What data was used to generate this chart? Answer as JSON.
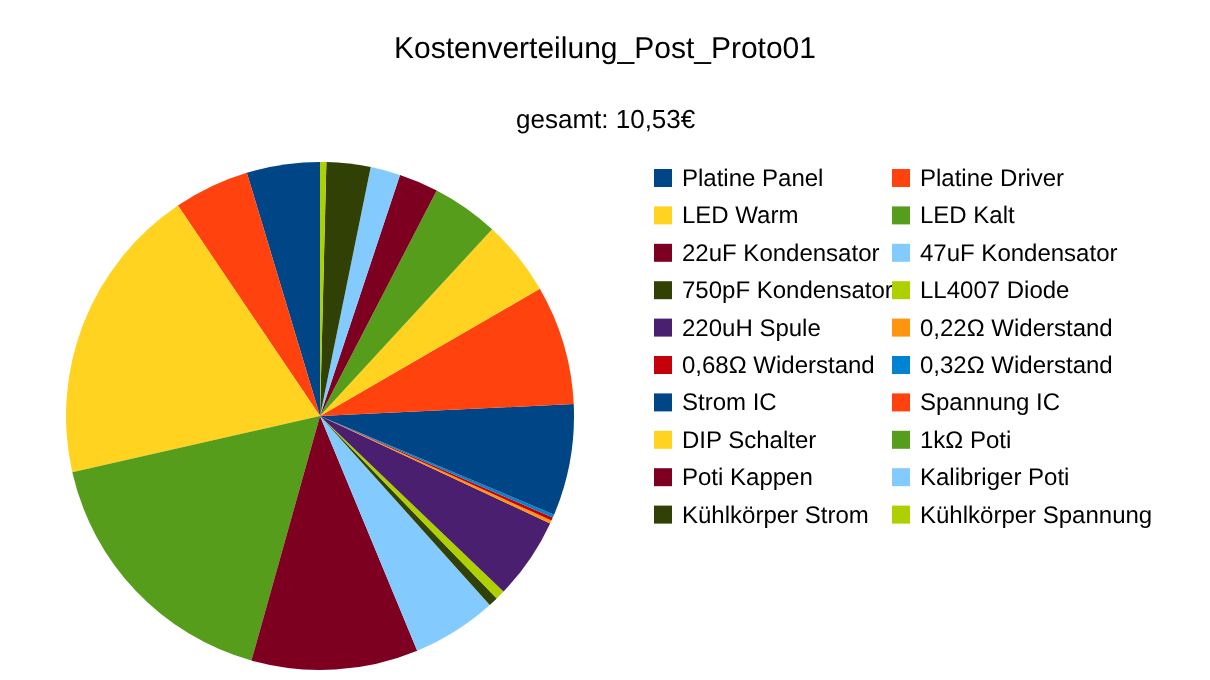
{
  "chart_data": {
    "type": "pie",
    "title": "Kostenverteilung_Post_Proto01",
    "subtitle": "gesamt: 10,53€",
    "categories": [
      "Platine Panel",
      "Platine Driver",
      "LED Warm",
      "LED Kalt",
      "22uF Kondensator",
      "47uF Kondensator",
      "750pF Kondensator",
      "LL4007 Diode",
      "220uH Spule",
      "0,22Ω Widerstand",
      "0,68Ω Widerstand",
      "0,32Ω Widerstand",
      "Strom IC",
      "Spannung IC",
      "DIP Schalter",
      "1kΩ Poti",
      "Poti Kappen",
      "Kalibriger Poti",
      "Kühlkörper Strom",
      "Kühlkörper Spannung"
    ],
    "values": [
      4.65,
      4.8,
      19.1,
      17.1,
      10.6,
      5.4,
      0.6,
      0.6,
      5.2,
      0.2,
      0.2,
      0.2,
      7.1,
      7.6,
      4.8,
      4.25,
      2.5,
      1.9,
      2.8,
      0.4
    ],
    "colors": [
      "#004586",
      "#ff420e",
      "#ffd320",
      "#579d1c",
      "#7e0021",
      "#83caff",
      "#314004",
      "#aecf00",
      "#4b1f6f",
      "#ff950e",
      "#c5000b",
      "#0084d1",
      "#004586",
      "#ff420e",
      "#ffd320",
      "#579d1c",
      "#7e0021",
      "#83caff",
      "#314004",
      "#aecf00"
    ],
    "legend": "right"
  }
}
